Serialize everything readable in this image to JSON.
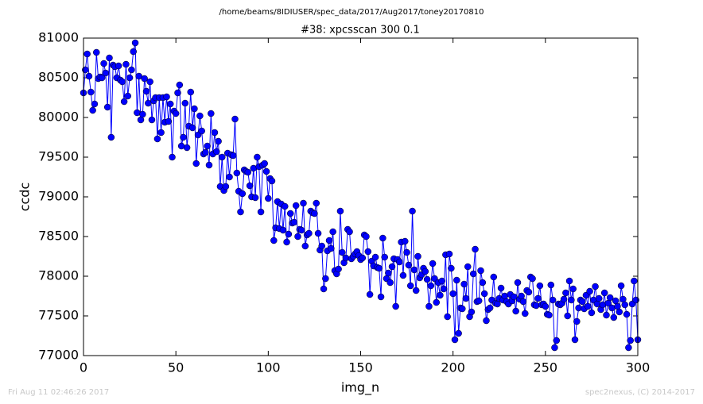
{
  "chart_data": {
    "type": "line",
    "suptitle": "/home/beams/8IDIUSER/spec_data/2017/Aug2017/toney20170810",
    "title": "#38: xpcsscan 300 0.1",
    "xlabel": "img_n",
    "ylabel": "ccdc",
    "footer_left": "Fri Aug 11 02:46:26 2017",
    "footer_right": "spec2nexus, (C) 2014-2017",
    "xlim": [
      0,
      300
    ],
    "xticks": [
      0,
      50,
      100,
      150,
      200,
      250,
      300
    ],
    "ylim": [
      77000,
      81000
    ],
    "yticks": [
      77000,
      77500,
      78000,
      78500,
      79000,
      79500,
      80000,
      80500,
      81000
    ],
    "series": [
      {
        "name": "ccdc",
        "color": "#0000ff",
        "x": [
          0,
          1,
          2,
          3,
          4,
          5,
          6,
          7,
          8,
          9,
          10,
          11,
          12,
          13,
          14,
          15,
          16,
          17,
          18,
          19,
          20,
          21,
          22,
          23,
          24,
          25,
          26,
          27,
          28,
          29,
          30,
          31,
          32,
          33,
          34,
          35,
          36,
          37,
          38,
          39,
          40,
          41,
          42,
          43,
          44,
          45,
          46,
          47,
          48,
          49,
          50,
          51,
          52,
          53,
          54,
          55,
          56,
          57,
          58,
          59,
          60,
          61,
          62,
          63,
          64,
          65,
          66,
          67,
          68,
          69,
          70,
          71,
          72,
          73,
          74,
          75,
          76,
          77,
          78,
          79,
          80,
          81,
          82,
          83,
          84,
          85,
          86,
          87,
          88,
          89,
          90,
          91,
          92,
          93,
          94,
          95,
          96,
          97,
          98,
          99,
          100,
          101,
          102,
          103,
          104,
          105,
          106,
          107,
          108,
          109,
          110,
          111,
          112,
          113,
          114,
          115,
          116,
          117,
          118,
          119,
          120,
          121,
          122,
          123,
          124,
          125,
          126,
          127,
          128,
          129,
          130,
          131,
          132,
          133,
          134,
          135,
          136,
          137,
          138,
          139,
          140,
          141,
          142,
          143,
          144,
          145,
          146,
          147,
          148,
          149,
          150,
          151,
          152,
          153,
          154,
          155,
          156,
          157,
          158,
          159,
          160,
          161,
          162,
          163,
          164,
          165,
          166,
          167,
          168,
          169,
          170,
          171,
          172,
          173,
          174,
          175,
          176,
          177,
          178,
          179,
          180,
          181,
          182,
          183,
          184,
          185,
          186,
          187,
          188,
          189,
          190,
          191,
          192,
          193,
          194,
          195,
          196,
          197,
          198,
          199,
          200,
          201,
          202,
          203,
          204,
          205,
          206,
          207,
          208,
          209,
          210,
          211,
          212,
          213,
          214,
          215,
          216,
          217,
          218,
          219,
          220,
          221,
          222,
          223,
          224,
          225,
          226,
          227,
          228,
          229,
          230,
          231,
          232,
          233,
          234,
          235,
          236,
          237,
          238,
          239,
          240,
          241,
          242,
          243,
          244,
          245,
          246,
          247,
          248,
          249,
          250,
          251,
          252,
          253,
          254,
          255,
          256,
          257,
          258,
          259,
          260,
          261,
          262,
          263,
          264,
          265,
          266,
          267,
          268,
          269,
          270,
          271,
          272,
          273,
          274,
          275,
          276,
          277,
          278,
          279,
          280,
          281,
          282,
          283,
          284,
          285,
          286,
          287,
          288,
          289,
          290,
          291,
          292,
          293,
          294,
          295,
          296,
          297,
          298,
          299,
          300
        ],
        "values": [
          80310,
          80600,
          80800,
          80520,
          80320,
          80090,
          80170,
          80820,
          80490,
          80510,
          80500,
          80680,
          80560,
          80130,
          80750,
          79750,
          80660,
          80640,
          80500,
          80650,
          80470,
          80450,
          80200,
          80670,
          80270,
          80500,
          80600,
          80830,
          80940,
          80060,
          80520,
          79970,
          80040,
          80490,
          80330,
          80180,
          80450,
          79970,
          80210,
          80250,
          79730,
          80250,
          79810,
          80250,
          79940,
          80260,
          79950,
          80170,
          79500,
          80080,
          80050,
          80310,
          80410,
          79640,
          79750,
          80180,
          79620,
          79890,
          80320,
          79870,
          80110,
          79420,
          79780,
          80020,
          79830,
          79540,
          79560,
          79640,
          79400,
          80050,
          79540,
          79810,
          79570,
          79700,
          79130,
          79500,
          79080,
          79130,
          79550,
          79250,
          79530,
          79520,
          79980,
          79300,
          79070,
          78810,
          79040,
          79340,
          79320,
          79310,
          79140,
          79000,
          79360,
          78990,
          79500,
          79380,
          78810,
          79400,
          79420,
          79320,
          78980,
          79230,
          79200,
          78450,
          78610,
          78940,
          78600,
          78910,
          78580,
          78880,
          78430,
          78530,
          78790,
          78670,
          78680,
          78890,
          78500,
          78590,
          78580,
          78920,
          78380,
          78520,
          78540,
          78820,
          78800,
          78790,
          78920,
          78540,
          78330,
          78380,
          77840,
          77970,
          78320,
          78450,
          78350,
          78560,
          78070,
          78030,
          78090,
          78820,
          78300,
          78170,
          78230,
          78590,
          78560,
          78220,
          78250,
          78280,
          78310,
          78260,
          78210,
          78230,
          78520,
          78500,
          78310,
          77770,
          78190,
          78130,
          78240,
          78110,
          78100,
          77740,
          78480,
          78240,
          77970,
          78040,
          77920,
          78120,
          78220,
          77620,
          78210,
          78180,
          78430,
          78010,
          78440,
          78300,
          78140,
          77880,
          78820,
          78080,
          77820,
          78250,
          77980,
          78020,
          78100,
          78060,
          77960,
          77620,
          77880,
          78160,
          77970,
          77670,
          77920,
          77760,
          77940,
          77840,
          78270,
          77490,
          78280,
          78100,
          77780,
          77200,
          77950,
          77280,
          77600,
          77590,
          77900,
          77720,
          78120,
          77490,
          77550,
          78030,
          78340,
          77680,
          77690,
          78070,
          77920,
          77780,
          77440,
          77580,
          77600,
          77700,
          77990,
          77660,
          77650,
          77720,
          77850,
          77700,
          77750,
          77680,
          77650,
          77770,
          77690,
          77740,
          77560,
          77920,
          77710,
          77750,
          77680,
          77530,
          77820,
          77800,
          77990,
          77970,
          77640,
          77630,
          77720,
          77880,
          77640,
          77650,
          77620,
          77520,
          77510,
          77890,
          77700,
          77100,
          77190,
          77650,
          77640,
          77660,
          77710,
          77790,
          77500,
          77940,
          77700,
          77840,
          77200,
          77430,
          77600,
          77700,
          77680,
          77590,
          77760,
          77620,
          77810,
          77540,
          77700,
          77870,
          77650,
          77720,
          77580,
          77640,
          77790,
          77510,
          77660,
          77730,
          77600,
          77480,
          77690,
          77620,
          77550,
          77880,
          77710,
          77640,
          77520,
          77100,
          77190,
          77650,
          77940,
          77700,
          77200
        ]
      }
    ]
  }
}
